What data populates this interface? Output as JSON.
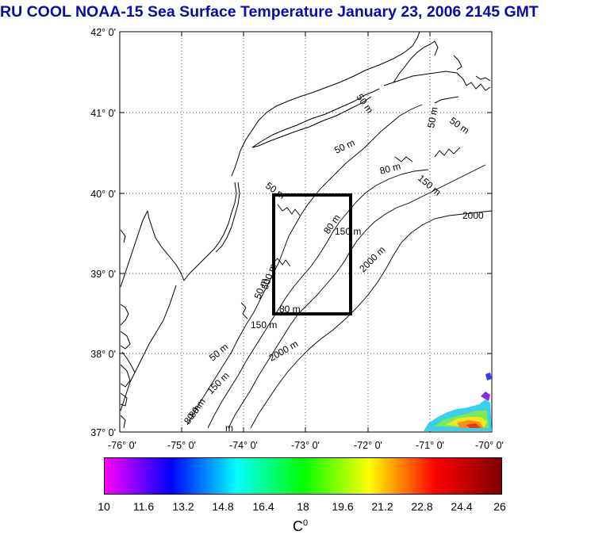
{
  "title": "RU COOL  NOAA-15 Sea Surface Temperature January 23, 2006 2145 GMT",
  "latitude_labels": [
    "42° 0'",
    "41° 0'",
    "40° 0'",
    "39° 0'",
    "38° 0'",
    "37° 0'"
  ],
  "longitude_labels": [
    "-76° 0'",
    "-75° 0'",
    "-74° 0'",
    "-73° 0'",
    "-72° 0'",
    "-71° 0'",
    "-70° 0'"
  ],
  "contour_labels": [
    "50 m",
    "50 m",
    "50 m",
    "50 m",
    "80 m",
    "150 m",
    "2000",
    "50 m",
    "80 m",
    "150 m",
    "2000 m",
    "50 m",
    "500 m",
    "80 m",
    "150 m",
    "50 m",
    "2000 m",
    "80 m",
    "150 m",
    "80 m",
    "m"
  ],
  "colorbar": {
    "labels": [
      "10",
      "11.6",
      "13.2",
      "14.8",
      "16.4",
      "18",
      "19.6",
      "21.2",
      "22.8",
      "24.4",
      "26"
    ],
    "colors": [
      "#ff00ff",
      "#0000ff",
      "#00ffff",
      "#00ff00",
      "#ffff00",
      "#ff0000",
      "#7f0000"
    ],
    "unit": "C",
    "unit_superscript": "0"
  },
  "study_box": {
    "lon_min": -73.5,
    "lon_max": -72.3,
    "lat_min": 38.5,
    "lat_max": 40.0
  }
}
